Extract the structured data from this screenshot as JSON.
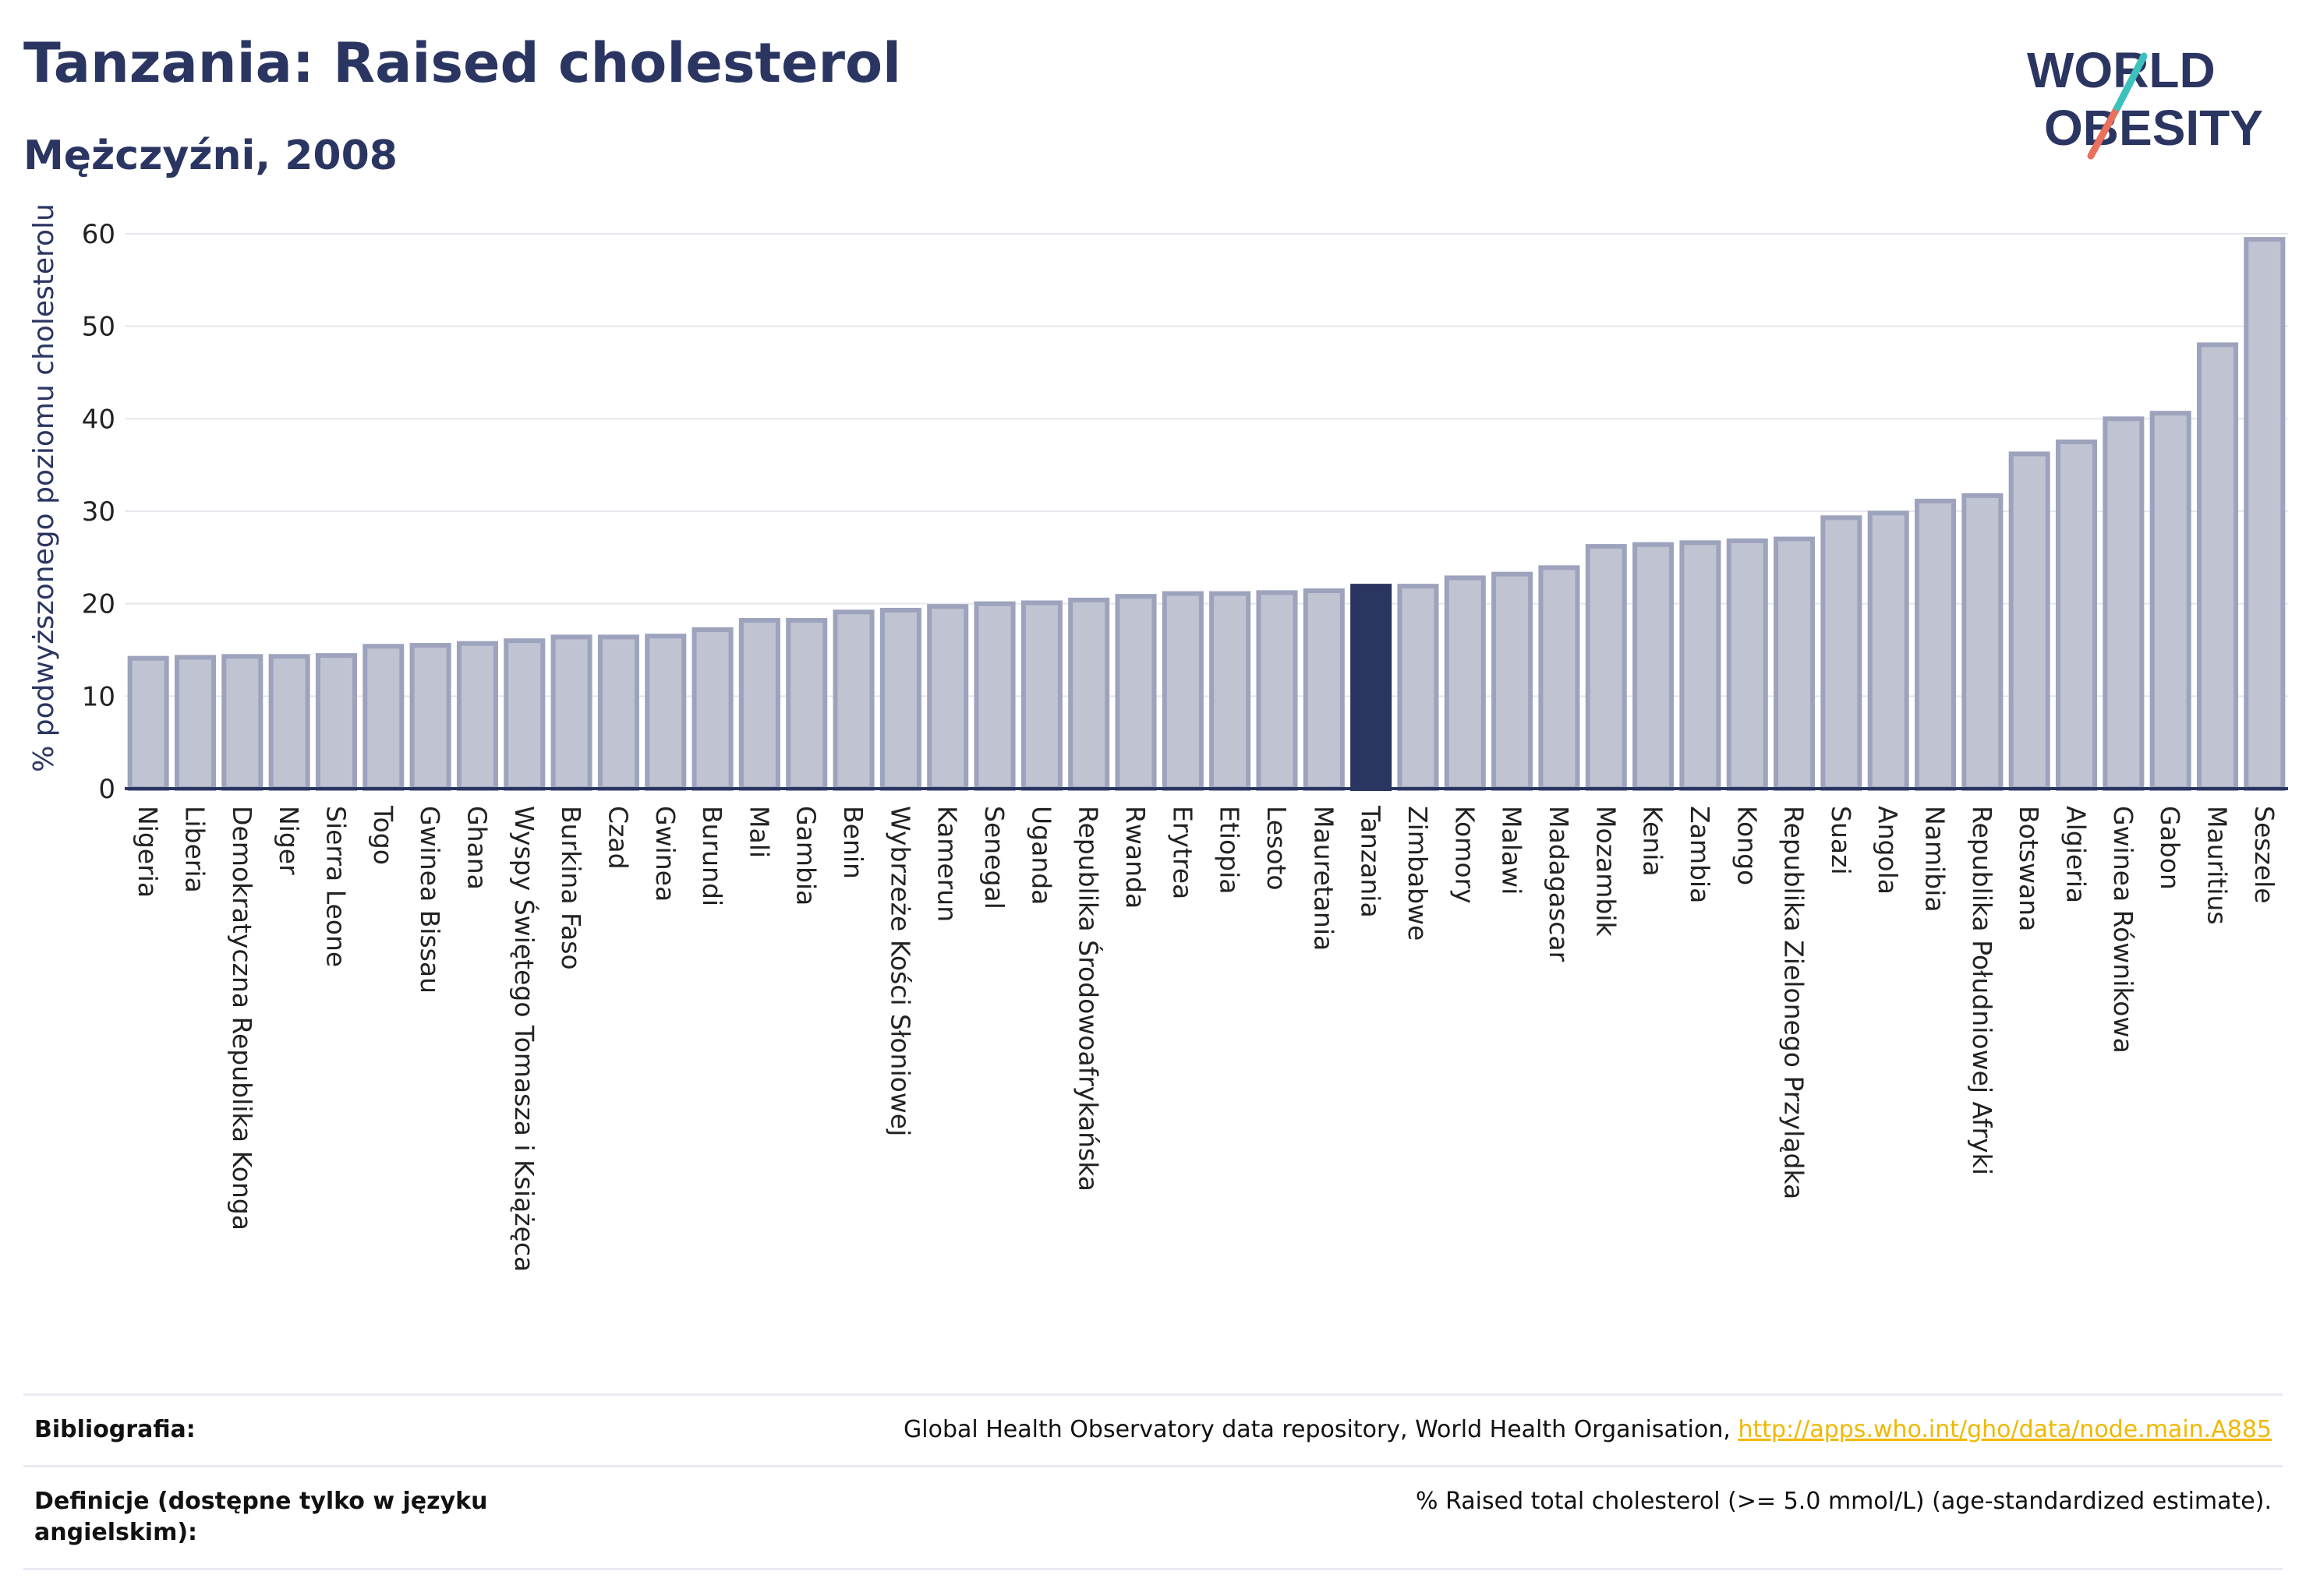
{
  "header": {
    "title": "Tanzania: Raised cholesterol",
    "subtitle": "Mężczyźni, 2008"
  },
  "logo": {
    "line1": "WORLD",
    "line2": "OBESITY"
  },
  "colors": {
    "bar": "#bfc3d2",
    "bar_outline": "#9da3bc",
    "highlight": "#2b3561",
    "grid": "#e6e7ee",
    "axis": "#2b3561"
  },
  "chart_data": {
    "type": "bar",
    "title": "Tanzania: Raised cholesterol",
    "subtitle": "Mężczyźni, 2008",
    "ylabel": "% podwyższonego poziomu cholesterolu",
    "xlabel": "",
    "ylim": [
      0,
      60
    ],
    "yticks": [
      0,
      10,
      20,
      30,
      40,
      50,
      60
    ],
    "grid": true,
    "highlight": "Tanzania",
    "categories": [
      "Nigeria",
      "Liberia",
      "Demokratyczna Republika Konga",
      "Niger",
      "Sierra Leone",
      "Togo",
      "Gwinea Bissau",
      "Ghana",
      "Wyspy Świętego Tomasza i Książęca",
      "Burkina Faso",
      "Czad",
      "Gwinea",
      "Burundi",
      "Mali",
      "Gambia",
      "Benin",
      "Wybrzeże Kości Słoniowej",
      "Kamerun",
      "Senegal",
      "Uganda",
      "Republika Środowoafrykańska",
      "Rwanda",
      "Erytrea",
      "Etiopia",
      "Lesoto",
      "Mauretania",
      "Tanzania",
      "Zimbabwe",
      "Komory",
      "Malawi",
      "Madagascar",
      "Mozambik",
      "Kenia",
      "Zambia",
      "Kongo",
      "Republika Zielonego Przylądka",
      "Suazi",
      "Angola",
      "Namibia",
      "Republika Południowej Afryki",
      "Botswana",
      "Algieria",
      "Gwinea Równikowa",
      "Gabon",
      "Mauritius",
      "Seszele"
    ],
    "values": [
      14.1,
      14.2,
      14.3,
      14.3,
      14.4,
      15.4,
      15.5,
      15.7,
      16.0,
      16.4,
      16.4,
      16.5,
      17.2,
      18.2,
      18.2,
      19.1,
      19.3,
      19.7,
      20.0,
      20.1,
      20.4,
      20.8,
      21.1,
      21.1,
      21.2,
      21.4,
      21.9,
      21.9,
      22.8,
      23.2,
      23.9,
      26.2,
      26.4,
      26.6,
      26.8,
      27.0,
      29.3,
      29.8,
      31.1,
      31.7,
      36.2,
      37.5,
      40.0,
      40.6,
      48.0,
      59.4
    ]
  },
  "footer": {
    "bibliography_label": "Bibliografia:",
    "bibliography_text": "Global Health Observatory data repository, World Health Organisation, ",
    "bibliography_link": "http://apps.who.int/gho/data/node.main.A885",
    "definitions_label": "Definicje (dostępne tylko w języku angielskim):",
    "definitions_text": "% Raised total cholesterol (>= 5.0 mmol/L) (age-standardized estimate)."
  }
}
